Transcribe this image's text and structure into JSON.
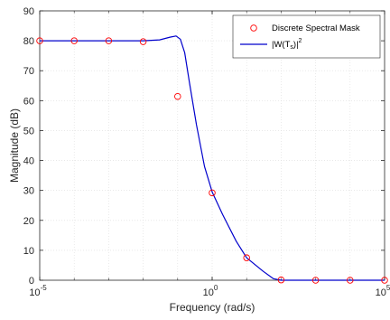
{
  "chart_data": {
    "type": "line",
    "xscale": "log",
    "xlim": [
      1e-05,
      100000
    ],
    "ylim": [
      0,
      90
    ],
    "xlabel": "Frequency (rad/s)",
    "ylabel": "Magnitude (dB)",
    "grid": true,
    "legend_location": "top-right",
    "xticks": [
      1e-05,
      1,
      100000
    ],
    "xtick_labels": [
      {
        "base": "10",
        "exp": "-5"
      },
      {
        "base": "10",
        "exp": "0"
      },
      {
        "base": "10",
        "exp": "5"
      }
    ],
    "yticks": [
      0,
      10,
      20,
      30,
      40,
      50,
      60,
      70,
      80,
      90
    ],
    "ytick_labels": [
      "0",
      "10",
      "20",
      "30",
      "40",
      "50",
      "60",
      "70",
      "80",
      "90"
    ],
    "series": [
      {
        "name": "Discrete Spectral Mask",
        "style": "markers",
        "marker": "circle-open",
        "color": "#ff0000",
        "x": [
          1e-05,
          0.0001,
          0.001,
          0.01,
          0.1,
          1,
          10,
          100,
          1000,
          10000,
          100000
        ],
        "y": [
          80,
          80,
          80,
          79.7,
          61.4,
          29.2,
          7.5,
          0.1,
          0,
          0,
          0
        ]
      },
      {
        "name": "|W(T_s)|^2",
        "name_parts": {
          "prefix": "|W(T",
          "sub": "s",
          "mid": ")|",
          "sup": "2"
        },
        "style": "line",
        "color": "#0000cc",
        "x": [
          1e-05,
          0.001,
          0.01,
          0.03,
          0.06,
          0.09,
          0.12,
          0.16,
          0.22,
          0.35,
          0.6,
          1,
          2,
          5,
          10,
          30,
          60,
          100,
          200,
          100000
        ],
        "y": [
          80,
          80,
          80,
          80.3,
          81.2,
          81.6,
          80.5,
          76,
          66,
          52,
          38,
          29.5,
          22,
          13,
          7.5,
          3,
          0.5,
          0,
          0,
          0
        ]
      }
    ]
  }
}
